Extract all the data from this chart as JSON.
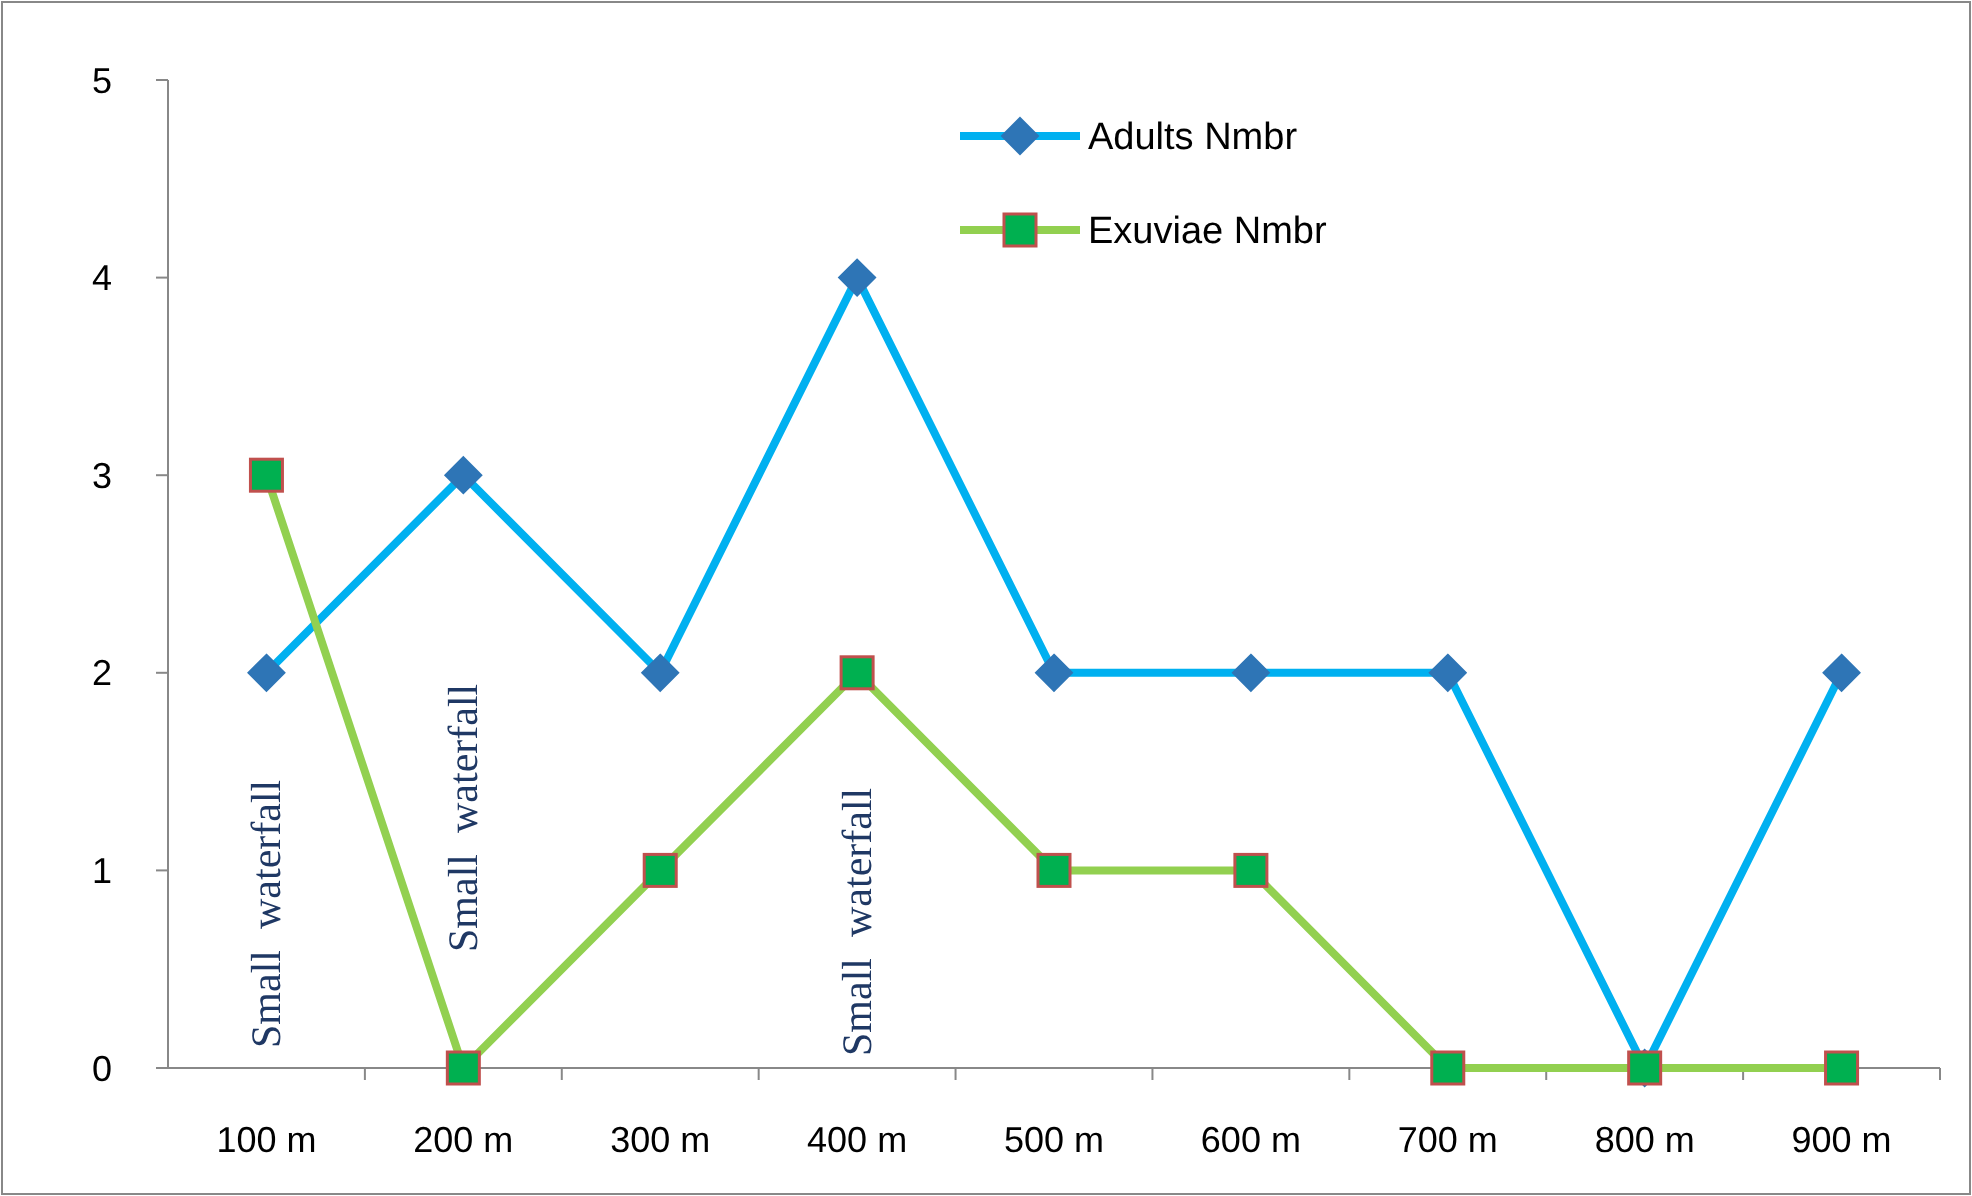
{
  "chart_data": {
    "type": "line",
    "categories": [
      "100 m",
      "200 m",
      "300 m",
      "400 m",
      "500 m",
      "600 m",
      "700 m",
      "800 m",
      "900 m"
    ],
    "series": [
      {
        "name": "Adults Nmbr",
        "color": "#00b0f0",
        "marker": "diamond",
        "values": [
          2,
          3,
          2,
          4,
          2,
          2,
          2,
          0,
          2
        ]
      },
      {
        "name": "Exuviae Nmbr",
        "color": "#92d050",
        "marker": "square",
        "values": [
          3,
          0,
          1,
          2,
          1,
          1,
          0,
          0,
          0
        ]
      }
    ],
    "ylim": [
      0,
      5
    ],
    "yticks": [
      0,
      1,
      2,
      3,
      4,
      5
    ],
    "grid": false,
    "legend": "top",
    "annotations": [
      "Small  waterfall",
      "Small  waterfall",
      "Small  waterfall"
    ]
  }
}
